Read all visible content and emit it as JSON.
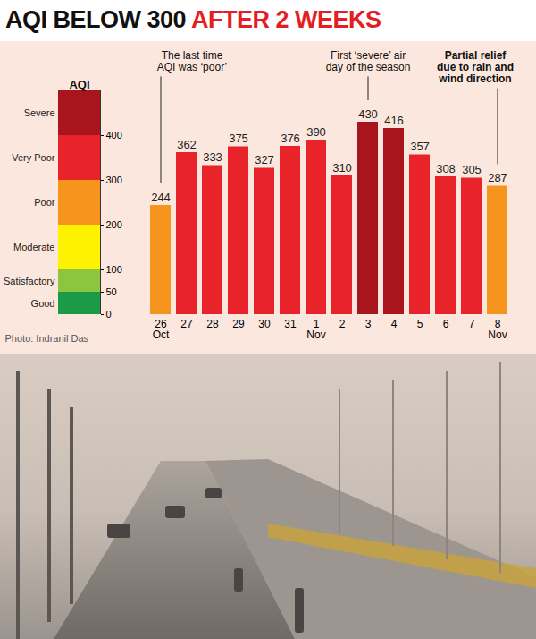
{
  "chart_data": {
    "type": "bar",
    "title": "AQI BELOW 300 AFTER 2 WEEKS",
    "categories": [
      "26\nOct",
      "27",
      "28",
      "29",
      "30",
      "31",
      "1\nNov",
      "2",
      "3",
      "4",
      "5",
      "6",
      "7",
      "8\nNov"
    ],
    "values": [
      244,
      362,
      333,
      375,
      327,
      376,
      390,
      310,
      430,
      416,
      357,
      308,
      305,
      287
    ],
    "colors": [
      "#f7941d",
      "#e8232a",
      "#e8232a",
      "#e8232a",
      "#e8232a",
      "#e8232a",
      "#e8232a",
      "#e8232a",
      "#a8151c",
      "#a8151c",
      "#e8232a",
      "#e8232a",
      "#e8232a",
      "#f7941d"
    ],
    "ylim": [
      0,
      500
    ],
    "yticks": [
      0,
      50,
      100,
      200,
      300,
      400
    ],
    "grid": false,
    "data_labels": true,
    "color_bar": {
      "title": "AQI",
      "bands": [
        {
          "label": "Good",
          "from": 0,
          "to": 50,
          "color": "#1b9a48"
        },
        {
          "label": "Satisfactory",
          "from": 50,
          "to": 100,
          "color": "#8cc63f"
        },
        {
          "label": "Moderate",
          "from": 100,
          "to": 200,
          "color": "#fff200"
        },
        {
          "label": "Poor",
          "from": 200,
          "to": 300,
          "color": "#f7941d"
        },
        {
          "label": "Very Poor",
          "from": 300,
          "to": 400,
          "color": "#e8232a"
        },
        {
          "label": "Severe",
          "from": 400,
          "to": 500,
          "color": "#a8151c"
        }
      ]
    },
    "annotations": [
      {
        "text": "The last time\nAQI was ‘poor’",
        "target": "26\nOct"
      },
      {
        "text": "First ‘severe’ air\nday of the season",
        "target": "3"
      },
      {
        "text": "Partial relief\ndue to rain and\nwind direction",
        "target": "8\nNov"
      }
    ],
    "caption": "Photo: Indranil Das"
  }
}
